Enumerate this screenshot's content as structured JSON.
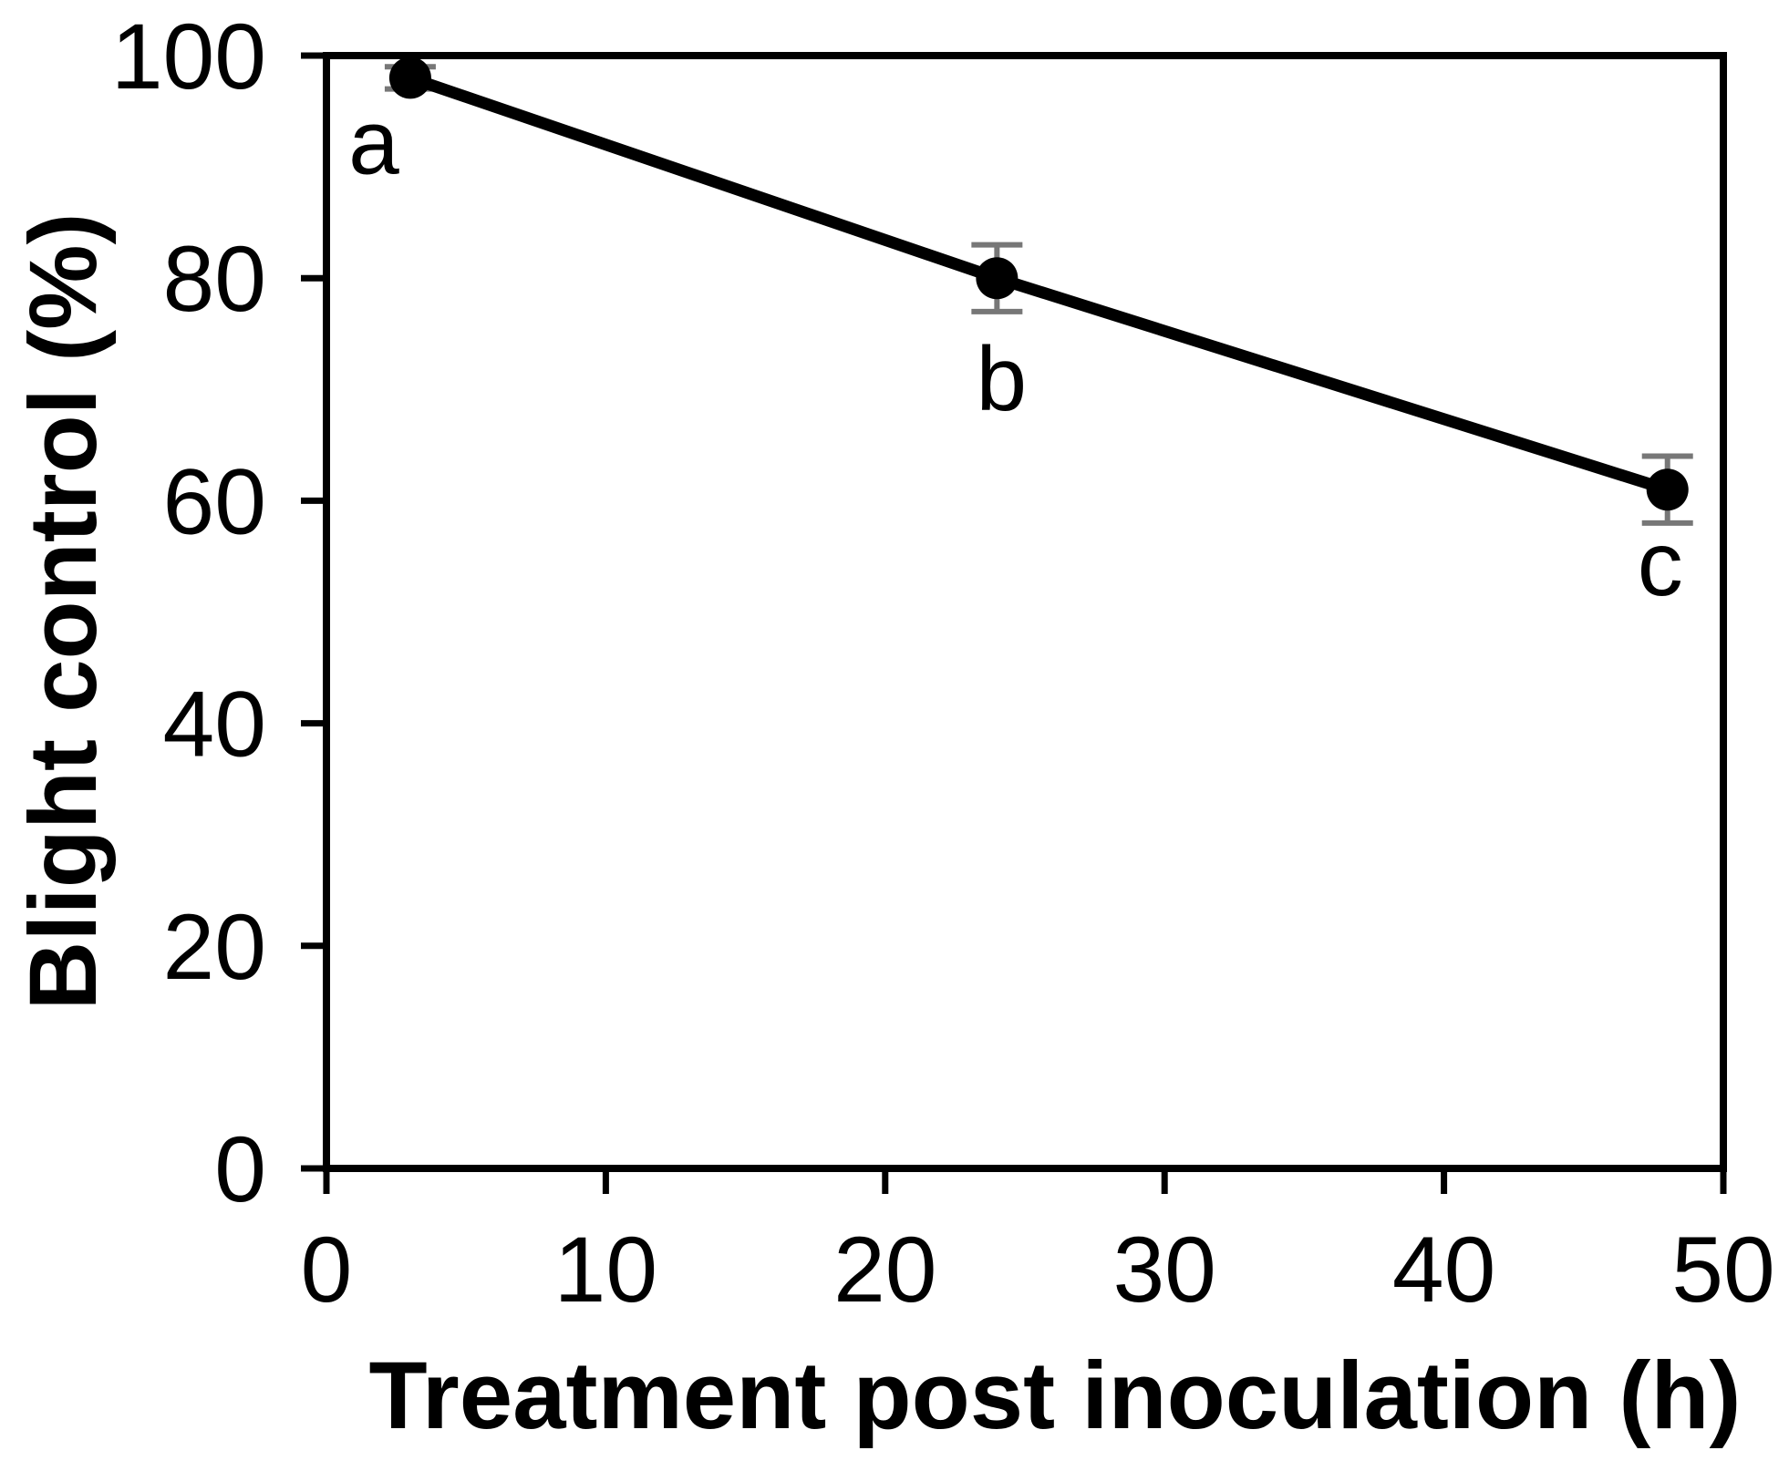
{
  "figure": {
    "background": "#ffffff",
    "axis_color": "#000000",
    "error_bar_color": "#777777"
  },
  "chart_data": {
    "type": "line",
    "title": "",
    "xlabel": "Treatment post inoculation (h)",
    "ylabel": "Blight control (%)",
    "xlim": [
      0,
      50
    ],
    "ylim": [
      0,
      100
    ],
    "x_ticks": [
      0,
      10,
      20,
      30,
      40,
      50
    ],
    "y_ticks": [
      0,
      20,
      40,
      60,
      80,
      100
    ],
    "grid": false,
    "legend": false,
    "series": [
      {
        "name": "Blight control",
        "marker": "filled-circle",
        "line_color": "#000000",
        "marker_color": "#000000",
        "error_color": "#777777",
        "points": [
          {
            "x": 3,
            "y": 98,
            "error": 1,
            "letter": "a"
          },
          {
            "x": 24,
            "y": 80,
            "error": 3,
            "letter": "b"
          },
          {
            "x": 48,
            "y": 61,
            "error": 3,
            "letter": "c"
          }
        ]
      }
    ]
  }
}
